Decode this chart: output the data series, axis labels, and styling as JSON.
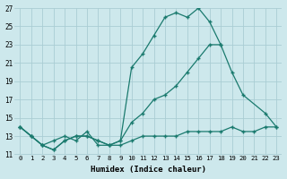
{
  "xlabel": "Humidex (Indice chaleur)",
  "background_color": "#cde8ec",
  "grid_color": "#aacdd4",
  "line_color": "#1a7a6e",
  "xlim": [
    -0.5,
    23.5
  ],
  "ylim": [
    11,
    27
  ],
  "yticks": [
    11,
    13,
    15,
    17,
    19,
    21,
    23,
    25,
    27
  ],
  "xticks": [
    0,
    1,
    2,
    3,
    4,
    5,
    6,
    7,
    8,
    9,
    10,
    11,
    12,
    13,
    14,
    15,
    16,
    17,
    18,
    19,
    20,
    21,
    22,
    23
  ],
  "series": [
    {
      "x": [
        0,
        1,
        2,
        3,
        4,
        5,
        6,
        7,
        8,
        9,
        10,
        11,
        12,
        13,
        14,
        15,
        16,
        17,
        18
      ],
      "y": [
        14.0,
        13.0,
        12.0,
        11.5,
        12.5,
        13.0,
        13.0,
        12.5,
        12.0,
        12.5,
        20.5,
        22.0,
        24.0,
        26.0,
        26.5,
        26.0,
        27.0,
        25.5,
        23.0
      ]
    },
    {
      "x": [
        0,
        1,
        2,
        3,
        4,
        5,
        6,
        7,
        8,
        9,
        10,
        11,
        12,
        13,
        14,
        15,
        16,
        17,
        18,
        19,
        20,
        22,
        23
      ],
      "y": [
        14.0,
        13.0,
        12.0,
        11.5,
        12.5,
        13.0,
        13.0,
        12.5,
        12.0,
        12.5,
        14.5,
        15.5,
        17.0,
        17.5,
        18.5,
        20.0,
        21.5,
        23.0,
        23.0,
        20.0,
        17.5,
        15.5,
        14.0
      ]
    },
    {
      "x": [
        0,
        1,
        2,
        3,
        4,
        5,
        6,
        7,
        8,
        9,
        10,
        11,
        12,
        13,
        14,
        15,
        16,
        17,
        18,
        19,
        20,
        21,
        22,
        23
      ],
      "y": [
        14.0,
        13.0,
        12.0,
        12.5,
        13.0,
        12.5,
        13.5,
        12.0,
        12.0,
        12.0,
        12.5,
        13.0,
        13.0,
        13.0,
        13.0,
        13.5,
        13.5,
        13.5,
        13.5,
        14.0,
        13.5,
        13.5,
        14.0,
        14.0
      ]
    }
  ]
}
